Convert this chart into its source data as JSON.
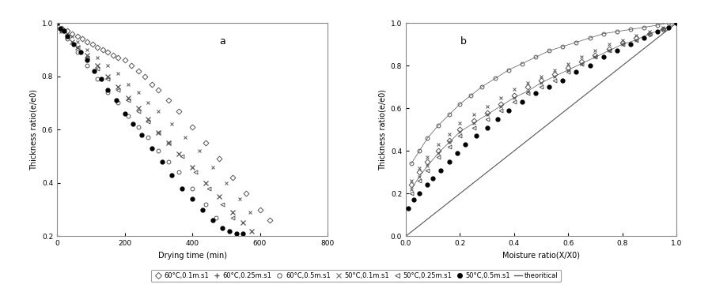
{
  "title_a": "a",
  "title_b": "b",
  "xlabel_a": "Drying time (min)",
  "xlabel_b": "Moisture ratio(X/X0)",
  "ylabel_a": "Thickness ratio(e/e0)",
  "ylabel_b": "Thickness ratio(e/e0)",
  "xlim_a": [
    0,
    800
  ],
  "ylim_a": [
    0.2,
    1.0
  ],
  "xlim_b": [
    0,
    1.0
  ],
  "ylim_b": [
    0,
    1.0
  ],
  "xticks_a": [
    0,
    200,
    400,
    600,
    800
  ],
  "yticks_a": [
    0.2,
    0.4,
    0.6,
    0.8,
    1.0
  ],
  "xticks_b": [
    0,
    0.2,
    0.4,
    0.6,
    0.8,
    1.0
  ],
  "yticks_b": [
    0,
    0.2,
    0.4,
    0.6,
    0.8,
    1.0
  ],
  "legend_labels": [
    "60°C,0.1m.s1",
    "60°C,0.25m.s1",
    "60°C,0.5m.s1",
    "50°C,0.1m.s1",
    "50°C,0.25m.s1",
    "50°C,0.5m.s1",
    "theoritical"
  ],
  "bg_color": "#ffffff",
  "figsize": [
    9.0,
    3.65
  ],
  "dpi": 100,
  "marker_size": 3.5,
  "font_size_label": 7,
  "font_size_tick": 6.5,
  "font_size_legend": 6,
  "font_size_title": 9,
  "a_60_01_x": [
    0,
    15,
    30,
    45,
    60,
    75,
    90,
    105,
    120,
    135,
    150,
    165,
    180,
    200,
    220,
    240,
    260,
    280,
    300,
    330,
    360,
    400,
    440,
    480,
    520,
    560,
    600,
    630
  ],
  "a_60_01_y": [
    1.0,
    0.98,
    0.97,
    0.96,
    0.95,
    0.94,
    0.93,
    0.92,
    0.91,
    0.9,
    0.89,
    0.88,
    0.87,
    0.86,
    0.84,
    0.82,
    0.8,
    0.77,
    0.75,
    0.71,
    0.67,
    0.61,
    0.55,
    0.49,
    0.42,
    0.36,
    0.3,
    0.26
  ],
  "a_60_025_x": [
    0,
    15,
    30,
    45,
    60,
    90,
    120,
    150,
    180,
    210,
    240,
    270,
    300,
    330,
    360,
    400,
    440,
    480,
    520,
    550,
    575
  ],
  "a_60_025_y": [
    1.0,
    0.97,
    0.95,
    0.93,
    0.91,
    0.88,
    0.84,
    0.8,
    0.76,
    0.72,
    0.68,
    0.64,
    0.59,
    0.55,
    0.51,
    0.46,
    0.4,
    0.35,
    0.29,
    0.25,
    0.22
  ],
  "a_60_05_x": [
    0,
    15,
    30,
    60,
    90,
    120,
    150,
    180,
    210,
    240,
    270,
    300,
    330,
    360,
    400,
    440,
    470
  ],
  "a_60_05_y": [
    1.0,
    0.97,
    0.94,
    0.89,
    0.84,
    0.79,
    0.74,
    0.7,
    0.65,
    0.61,
    0.57,
    0.52,
    0.48,
    0.44,
    0.38,
    0.32,
    0.27
  ],
  "a_50_01_x": [
    0,
    15,
    30,
    45,
    60,
    90,
    120,
    150,
    180,
    210,
    240,
    270,
    300,
    340,
    380,
    420,
    460,
    500,
    540,
    570
  ],
  "a_50_01_y": [
    1.0,
    0.98,
    0.96,
    0.95,
    0.93,
    0.9,
    0.87,
    0.84,
    0.81,
    0.77,
    0.74,
    0.7,
    0.67,
    0.62,
    0.57,
    0.52,
    0.46,
    0.4,
    0.34,
    0.29
  ],
  "a_50_025_x": [
    0,
    15,
    30,
    60,
    90,
    120,
    150,
    180,
    210,
    240,
    270,
    300,
    330,
    370,
    410,
    450,
    490,
    520
  ],
  "a_50_025_y": [
    1.0,
    0.97,
    0.95,
    0.91,
    0.87,
    0.83,
    0.79,
    0.75,
    0.71,
    0.67,
    0.63,
    0.59,
    0.55,
    0.5,
    0.44,
    0.38,
    0.32,
    0.27
  ],
  "a_50_05_x": [
    0,
    10,
    20,
    30,
    50,
    70,
    90,
    110,
    130,
    150,
    175,
    200,
    225,
    250,
    280,
    310,
    340,
    370,
    400,
    430,
    460,
    490,
    510,
    530,
    550
  ],
  "a_50_05_y": [
    1.0,
    0.98,
    0.97,
    0.95,
    0.92,
    0.89,
    0.86,
    0.82,
    0.79,
    0.75,
    0.71,
    0.66,
    0.62,
    0.58,
    0.53,
    0.48,
    0.43,
    0.38,
    0.34,
    0.3,
    0.26,
    0.23,
    0.22,
    0.21,
    0.21
  ],
  "b_60_05_x": [
    0.02,
    0.05,
    0.08,
    0.12,
    0.16,
    0.2,
    0.24,
    0.28,
    0.33,
    0.38,
    0.43,
    0.48,
    0.53,
    0.58,
    0.63,
    0.68,
    0.73,
    0.78,
    0.83,
    0.88,
    0.93,
    0.97,
    1.0
  ],
  "b_60_05_y": [
    0.34,
    0.4,
    0.46,
    0.52,
    0.57,
    0.62,
    0.66,
    0.7,
    0.74,
    0.78,
    0.81,
    0.84,
    0.87,
    0.89,
    0.91,
    0.93,
    0.95,
    0.96,
    0.97,
    0.98,
    0.99,
    1.0,
    1.0
  ],
  "b_60_025_x": [
    0.02,
    0.05,
    0.08,
    0.12,
    0.16,
    0.2,
    0.25,
    0.3,
    0.35,
    0.4,
    0.45,
    0.5,
    0.55,
    0.6,
    0.65,
    0.7,
    0.75,
    0.8,
    0.85,
    0.9,
    0.95,
    1.0
  ],
  "b_60_025_y": [
    0.26,
    0.32,
    0.37,
    0.43,
    0.48,
    0.53,
    0.57,
    0.61,
    0.65,
    0.69,
    0.72,
    0.75,
    0.78,
    0.81,
    0.84,
    0.87,
    0.9,
    0.92,
    0.94,
    0.96,
    0.98,
    1.0
  ],
  "b_60_01_x": [
    0.02,
    0.05,
    0.08,
    0.12,
    0.16,
    0.2,
    0.25,
    0.3,
    0.35,
    0.4,
    0.45,
    0.5,
    0.55,
    0.6,
    0.65,
    0.7,
    0.75,
    0.8,
    0.85,
    0.9,
    0.95,
    1.0
  ],
  "b_60_01_y": [
    0.24,
    0.3,
    0.35,
    0.4,
    0.45,
    0.5,
    0.54,
    0.58,
    0.62,
    0.66,
    0.7,
    0.73,
    0.76,
    0.79,
    0.82,
    0.85,
    0.88,
    0.91,
    0.93,
    0.95,
    0.97,
    1.0
  ],
  "b_50_05_x": [
    0.01,
    0.03,
    0.05,
    0.08,
    0.1,
    0.13,
    0.16,
    0.19,
    0.22,
    0.26,
    0.3,
    0.34,
    0.38,
    0.43,
    0.48,
    0.53,
    0.58,
    0.63,
    0.68,
    0.73,
    0.78,
    0.83,
    0.88,
    0.93,
    0.97,
    1.0
  ],
  "b_50_05_y": [
    0.13,
    0.17,
    0.2,
    0.24,
    0.27,
    0.31,
    0.35,
    0.39,
    0.43,
    0.47,
    0.51,
    0.55,
    0.59,
    0.63,
    0.67,
    0.7,
    0.73,
    0.77,
    0.8,
    0.84,
    0.87,
    0.9,
    0.93,
    0.96,
    0.98,
    1.0
  ],
  "b_50_025_x": [
    0.02,
    0.05,
    0.08,
    0.12,
    0.16,
    0.2,
    0.25,
    0.3,
    0.35,
    0.4,
    0.45,
    0.5,
    0.55,
    0.6,
    0.65,
    0.7,
    0.75,
    0.8,
    0.85,
    0.9,
    0.95,
    1.0
  ],
  "b_50_025_y": [
    0.2,
    0.26,
    0.31,
    0.37,
    0.42,
    0.47,
    0.51,
    0.55,
    0.59,
    0.63,
    0.67,
    0.7,
    0.73,
    0.77,
    0.81,
    0.84,
    0.87,
    0.9,
    0.92,
    0.95,
    0.97,
    1.0
  ],
  "b_50_01_x": [
    0.02,
    0.05,
    0.08,
    0.12,
    0.16,
    0.2,
    0.25,
    0.3,
    0.35,
    0.4,
    0.45,
    0.5,
    0.55,
    0.6,
    0.65,
    0.7,
    0.75,
    0.8,
    0.85,
    0.9,
    0.95,
    1.0
  ],
  "b_50_01_y": [
    0.22,
    0.28,
    0.33,
    0.39,
    0.44,
    0.49,
    0.53,
    0.57,
    0.61,
    0.65,
    0.68,
    0.72,
    0.75,
    0.78,
    0.81,
    0.84,
    0.87,
    0.9,
    0.92,
    0.95,
    0.97,
    1.0
  ]
}
